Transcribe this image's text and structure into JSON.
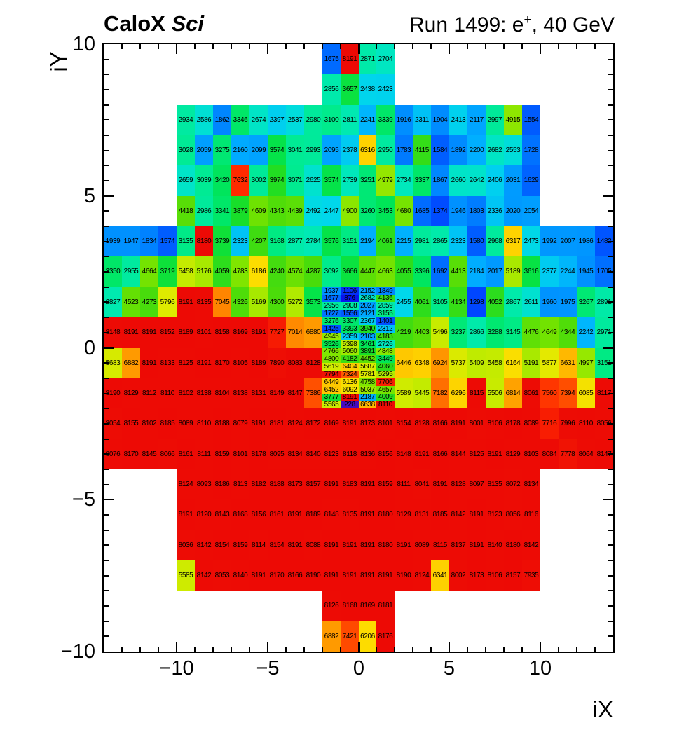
{
  "chart_data": {
    "type": "heatmap",
    "titles": {
      "left_bold": "CaloX",
      "left_italic": "Sci",
      "right_prefix": "Run 1499: e",
      "right_sup": "+",
      "right_suffix": ", 40 GeV"
    },
    "xlabel": "iX",
    "ylabel": "iY",
    "xlim": [
      -14,
      14
    ],
    "ylim": [
      -10,
      10
    ],
    "zmin": 228,
    "zmax": 8191,
    "x_ticks": {
      "values": [
        -10,
        -5,
        0,
        5,
        10
      ],
      "labels": [
        "−10",
        "−5",
        "0",
        "5",
        "10"
      ]
    },
    "y_ticks": {
      "values": [
        10,
        5,
        0,
        -5,
        -10
      ],
      "labels": [
        "10",
        "5",
        "0",
        "−5",
        "−10"
      ]
    },
    "minor_tick_step_x": 1,
    "minor_tick_step_y": 0.5,
    "palette": [
      [
        228,
        "#440abd"
      ],
      [
        800,
        "#0a0aeb"
      ],
      [
        1300,
        "#0046ff"
      ],
      [
        1600,
        "#005fff"
      ],
      [
        1900,
        "#008cff"
      ],
      [
        2200,
        "#00afff"
      ],
      [
        2450,
        "#00d7eb"
      ],
      [
        2750,
        "#00e9b9"
      ],
      [
        3100,
        "#00eb8c"
      ],
      [
        3500,
        "#00e450"
      ],
      [
        3900,
        "#19de28"
      ],
      [
        4300,
        "#4bdc0a"
      ],
      [
        4700,
        "#78e400"
      ],
      [
        5100,
        "#a0e900"
      ],
      [
        5500,
        "#c8eb00"
      ],
      [
        5900,
        "#e6e900"
      ],
      [
        6200,
        "#fddc00"
      ],
      [
        6600,
        "#ffbc00"
      ],
      [
        7000,
        "#ff8c00"
      ],
      [
        7350,
        "#ff5500"
      ],
      [
        7650,
        "#ff2800"
      ],
      [
        7800,
        "#ee0f05"
      ],
      [
        8191,
        "#ed0a05"
      ]
    ],
    "coarse_segments": [
      {
        "iy": 10,
        "x0": -2,
        "values": [
          1675,
          8191,
          2871,
          2704
        ]
      },
      {
        "iy": 9,
        "x0": -2,
        "values": [
          2856,
          3657,
          2438,
          2423
        ]
      },
      {
        "iy": 8,
        "x0": -10,
        "values": [
          2934,
          2586,
          1862,
          3346,
          2674,
          2397,
          2537,
          2980,
          3100,
          2811,
          2241,
          3339,
          1916,
          2311,
          1904,
          2413,
          2117,
          2997,
          4915,
          1554
        ]
      },
      {
        "iy": 7,
        "x0": -10,
        "values": [
          3028,
          2059,
          3275,
          2160,
          2099,
          3574,
          3041,
          2993,
          2095,
          2378,
          6316,
          2950,
          1783,
          4115,
          1584,
          1892,
          2200,
          2682,
          2553,
          1728
        ]
      },
      {
        "iy": 6,
        "x0": -10,
        "values": [
          2659,
          3039,
          3420,
          7632,
          3002,
          3974,
          3071,
          2625,
          3574,
          2739,
          3251,
          4979,
          2734,
          3337,
          1867,
          2660,
          2642,
          2406,
          2031,
          1629
        ]
      },
      {
        "iy": 5,
        "x0": -10,
        "values": [
          4418,
          2986,
          3341,
          3879,
          4609,
          4343,
          4439,
          2492,
          2447,
          4900,
          3260,
          3453,
          4680,
          1685,
          1374,
          1946,
          1803,
          2336,
          2020,
          2054
        ]
      },
      {
        "iy": 4,
        "x0": -14,
        "values": [
          1939,
          1947,
          1834,
          1574,
          3135,
          8180,
          3739,
          2323,
          4207,
          3168,
          2877,
          2784,
          3576,
          3151,
          2194,
          4061,
          2215,
          2981,
          2865,
          2323,
          1580,
          2968,
          6317,
          2473,
          1992,
          2007,
          1986,
          1482
        ]
      },
      {
        "iy": 3,
        "x0": -14,
        "values": [
          3350,
          2955,
          4664,
          3719,
          5458,
          5176,
          4059,
          4783,
          6186,
          4240,
          4574,
          4287,
          3092,
          3666,
          4447,
          4663,
          4055,
          3396,
          1692,
          4413,
          2184,
          2017,
          5189,
          3616,
          2377,
          2244,
          1945,
          1705
        ]
      },
      {
        "iy": 2,
        "x0": -14,
        "values": [
          2827,
          4523,
          4273,
          5796,
          8191,
          8135,
          7045,
          4326,
          5169,
          4300,
          5272,
          3573
        ]
      },
      {
        "iy": 2,
        "x0": 2,
        "values": [
          2455,
          4061,
          3105,
          4134,
          1298,
          4052,
          2867,
          2611,
          1960,
          1975,
          3267,
          2891
        ]
      },
      {
        "iy": 1,
        "x0": -14,
        "values": [
          8148,
          8191,
          8191,
          8152,
          8189,
          8101,
          8158,
          8169,
          8191,
          7727,
          7014,
          6880
        ]
      },
      {
        "iy": 1,
        "x0": 2,
        "values": [
          4219,
          4403,
          5496,
          3237,
          2866,
          3288,
          3145,
          4476,
          4649,
          4344,
          2242,
          2971
        ]
      },
      {
        "iy": 0,
        "x0": -14,
        "values": [
          5683,
          6882,
          8191,
          8133,
          8125,
          8191,
          8170,
          8105,
          8189,
          7890,
          8083,
          8128
        ]
      },
      {
        "iy": 0,
        "x0": 2,
        "values": [
          6446,
          6348,
          6924,
          5737,
          5409,
          5458,
          6164,
          5191,
          5877,
          6631,
          4997,
          3151
        ]
      },
      {
        "iy": -1,
        "x0": -14,
        "values": [
          8190,
          8129,
          8112,
          8110,
          8102,
          8138,
          8104,
          8138,
          8131,
          8149,
          8147,
          7386
        ]
      },
      {
        "iy": -1,
        "x0": 2,
        "values": [
          5589,
          5445,
          7182,
          6296,
          8115,
          5506,
          6814,
          8061,
          7560,
          7394,
          6085,
          8117
        ]
      },
      {
        "iy": -2,
        "x0": -14,
        "values": [
          8054,
          8155,
          8102,
          8185,
          8089,
          8110,
          8188,
          8079,
          8191,
          8181,
          8124,
          8172,
          8169,
          8191,
          8173,
          8101,
          8154,
          8128,
          8166,
          8191,
          8001,
          8106,
          8178,
          8089,
          7716,
          7996,
          8110,
          8056
        ]
      },
      {
        "iy": -3,
        "x0": -14,
        "values": [
          8076,
          8170,
          8145,
          8066,
          8161,
          8111,
          8159,
          8101,
          8178,
          8095,
          8134,
          8140,
          8123,
          8118,
          8136,
          8156,
          8148,
          8191,
          8166,
          8144,
          8125,
          8191,
          8129,
          8103,
          8084,
          7778,
          8064,
          8147
        ]
      },
      {
        "iy": -4,
        "x0": -10,
        "values": [
          8124,
          8093,
          8186,
          8113,
          8182,
          8188,
          8173,
          8157,
          8191,
          8183,
          8191,
          8159,
          8111,
          8041,
          8191,
          8128,
          8097,
          8135,
          8072,
          8134
        ]
      },
      {
        "iy": -5,
        "x0": -10,
        "values": [
          8191,
          8120,
          8143,
          8168,
          8156,
          8161,
          8191,
          8189,
          8148,
          8135,
          8191,
          8180,
          8129,
          8131,
          8185,
          8142,
          8191,
          8123,
          8056,
          8116
        ]
      },
      {
        "iy": -6,
        "x0": -10,
        "values": [
          8036,
          8142,
          8154,
          8159,
          8114,
          8154,
          8191,
          8088,
          8191,
          8191,
          8191,
          8180,
          8191,
          8089,
          8115,
          8137,
          8191,
          8140,
          8180,
          8142
        ]
      },
      {
        "iy": -7,
        "x0": -10,
        "values": [
          5585,
          8142,
          8053,
          8140,
          8191,
          8170,
          8166,
          8190,
          8191,
          8191,
          8191,
          8191,
          8190,
          8124,
          6341,
          8002,
          8173,
          8106,
          8157,
          7935
        ]
      },
      {
        "iy": -8,
        "x0": -2,
        "values": [
          8126,
          8168,
          8169,
          8181
        ]
      },
      {
        "iy": -9,
        "x0": -2,
        "values": [
          6882,
          7421,
          6206,
          8176
        ]
      }
    ],
    "fine_block": {
      "x0": -2,
      "col_width": 1,
      "iy_top": 2,
      "row_height": 0.25,
      "rows": [
        [
          1937,
          1106,
          2152,
          1849
        ],
        [
          1677,
          876,
          2682,
          4136
        ],
        [
          2956,
          2908,
          2027,
          2859
        ],
        [
          1727,
          1556,
          2121,
          3155
        ],
        [
          3276,
          3307,
          2367,
          1401
        ],
        [
          1425,
          3393,
          3940,
          2312
        ],
        [
          4945,
          2359,
          2103,
          4183
        ],
        [
          3526,
          5398,
          3461,
          2726
        ],
        [
          4766,
          5060,
          3891,
          4848
        ],
        [
          4800,
          4182,
          4452,
          3449
        ],
        [
          5619,
          6404,
          5687,
          4060
        ],
        [
          7794,
          7324,
          5781,
          5295
        ],
        [
          6449,
          6136,
          4758,
          7706
        ],
        [
          6452,
          6092,
          5037,
          4657
        ],
        [
          3777,
          8191,
          2187,
          4009
        ],
        [
          5565,
          228,
          6638,
          8110
        ]
      ]
    }
  }
}
